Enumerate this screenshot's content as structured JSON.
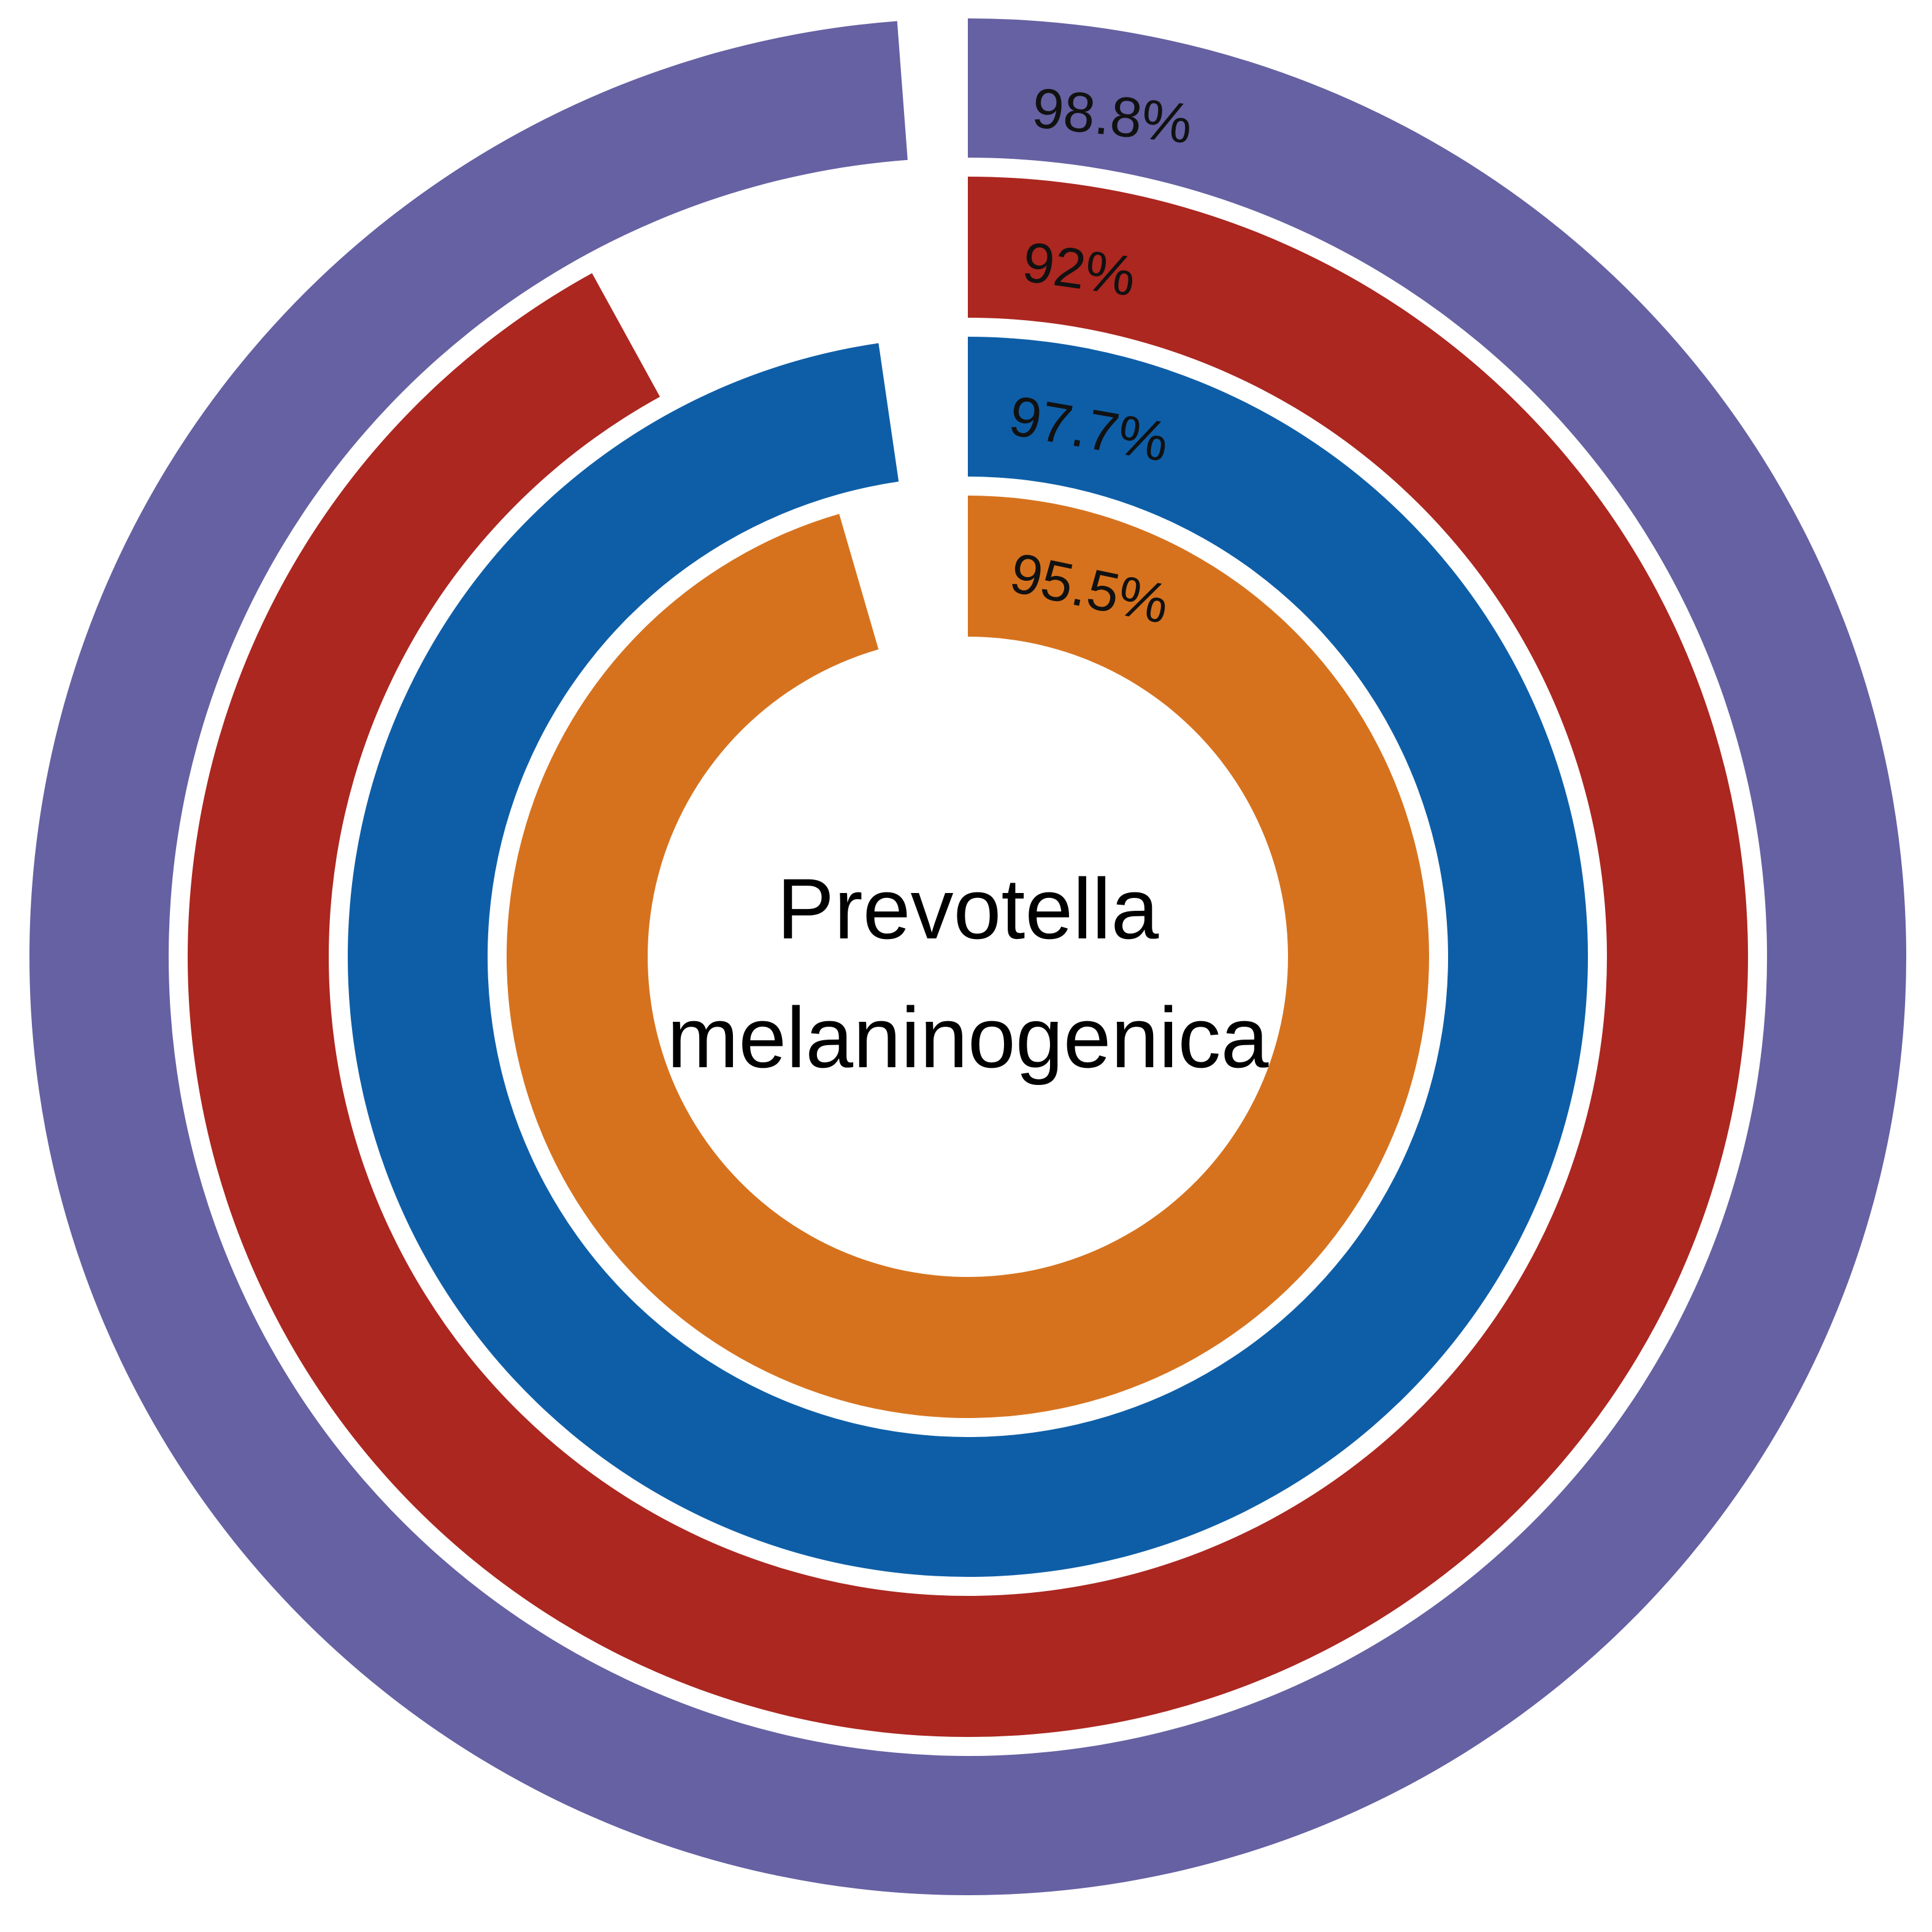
{
  "chart_data": {
    "type": "radial-bar",
    "center_label": [
      "Prevotella",
      "melaninogenica"
    ],
    "rings": [
      {
        "value": 98.8,
        "label": "98.8%",
        "color": "#6561a2"
      },
      {
        "value": 92,
        "label": "92%",
        "color": "#ab2720"
      },
      {
        "value": 97.7,
        "label": "97.7%",
        "color": "#0e5ea7"
      },
      {
        "value": 95.5,
        "label": "95.5%",
        "color": "#d6721e"
      }
    ],
    "max_value": 100,
    "start_angle": "top",
    "direction": "clockwise"
  }
}
